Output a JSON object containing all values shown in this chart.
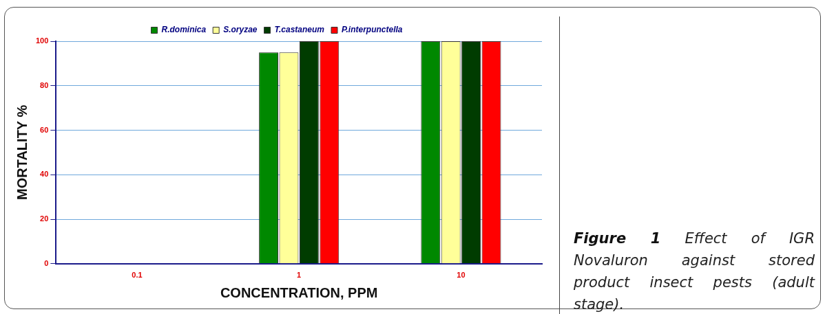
{
  "chart_data": {
    "type": "bar",
    "categories": [
      "0.1",
      "1",
      "10"
    ],
    "series": [
      {
        "name": "R.dominica",
        "color": "#008800",
        "values": [
          0,
          95,
          100
        ]
      },
      {
        "name": "S.oryzae",
        "color": "#ffff99",
        "values": [
          0,
          95,
          100
        ]
      },
      {
        "name": "T.castaneum",
        "color": "#003c00",
        "values": [
          0,
          100,
          100
        ]
      },
      {
        "name": "P.interpunctella",
        "color": "#ff0000",
        "values": [
          0,
          100,
          100
        ]
      }
    ],
    "xlabel": "CONCENTRATION, PPM",
    "ylabel": "MORTALITY %",
    "ylim": [
      0,
      100
    ],
    "yticks": [
      0,
      20,
      40,
      60,
      80,
      100
    ],
    "grid": "y",
    "legend": "top",
    "annotations": [
      "Figure 1",
      "Effect of IGR Novaluron against stored product insect pests (adult stage)."
    ]
  }
}
